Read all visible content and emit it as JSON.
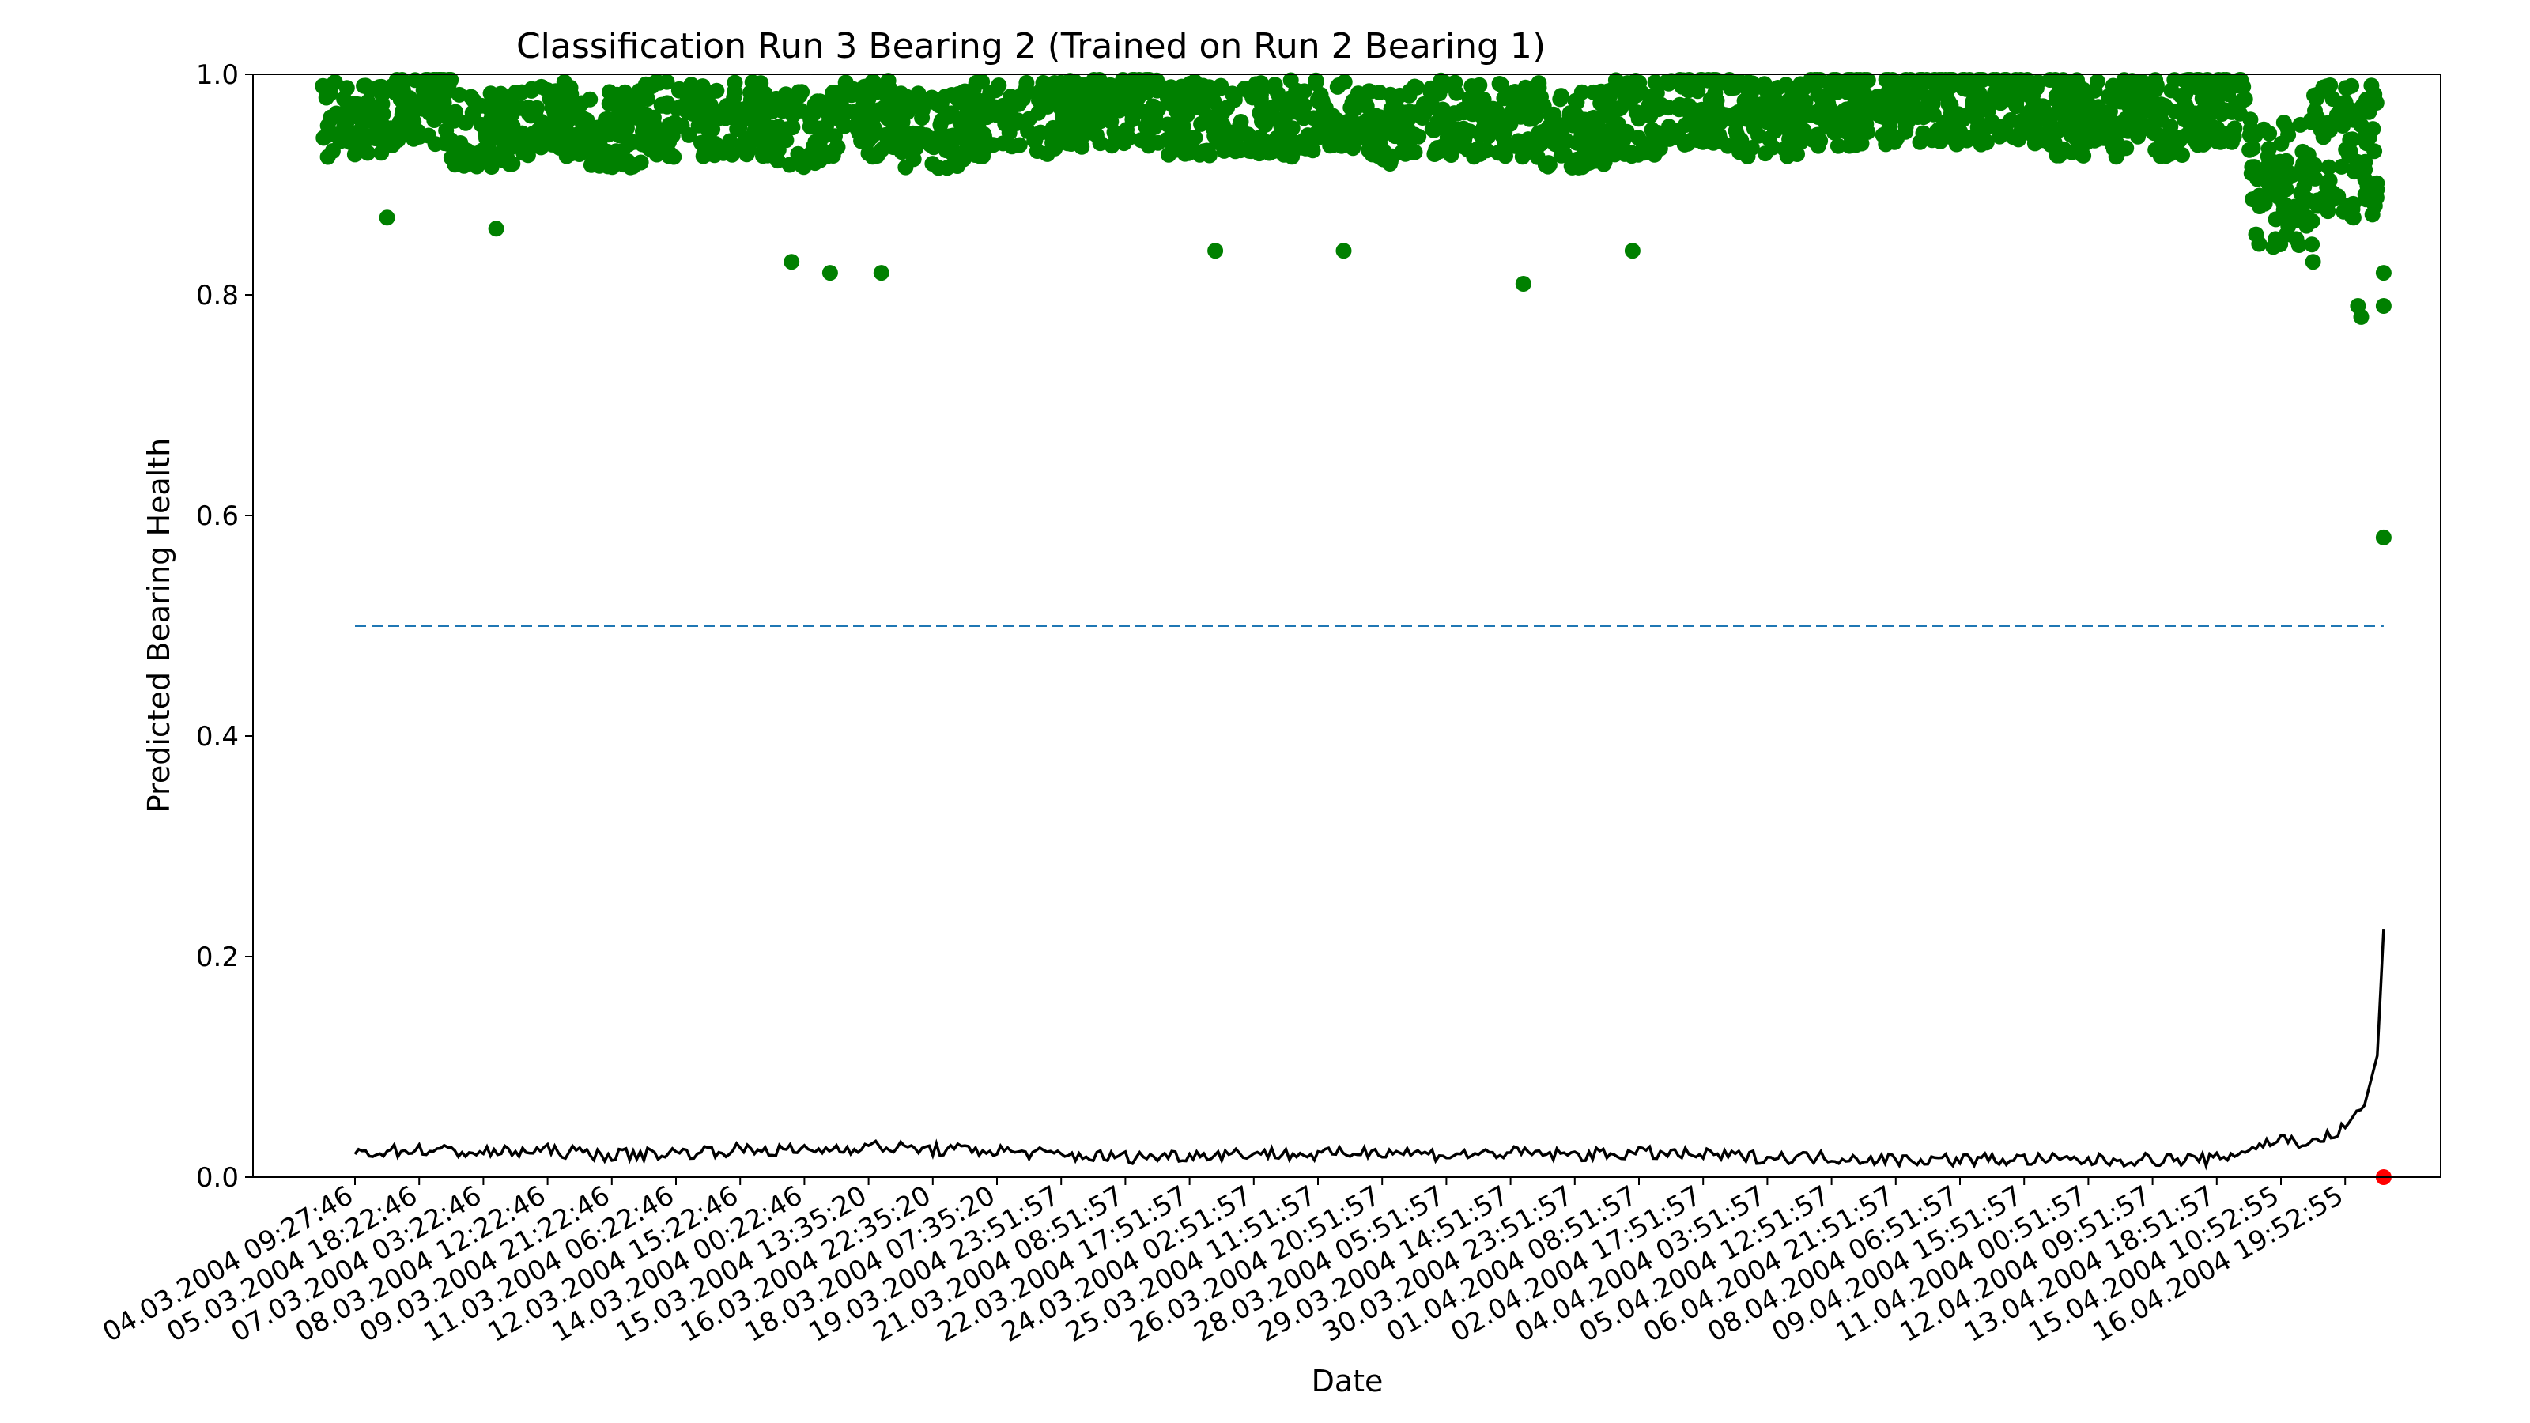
{
  "chart_data": {
    "type": "scatter",
    "title": "Classification Run 3 Bearing 2 (Trained on Run 2 Bearing 1)",
    "xlabel": "Date",
    "ylabel": "Predicted Bearing Health",
    "ylim": [
      0,
      1
    ],
    "yticks": [
      "0.0",
      "0.2",
      "0.4",
      "0.6",
      "0.8",
      "1.0"
    ],
    "xticks": [
      "04.03.2004 09:27:46",
      "05.03.2004 18:22:46",
      "07.03.2004 03:22:46",
      "08.03.2004 12:22:46",
      "09.03.2004 21:22:46",
      "11.03.2004 06:22:46",
      "12.03.2004 15:22:46",
      "14.03.2004 00:22:46",
      "15.03.2004 13:35:20",
      "16.03.2004 22:35:20",
      "18.03.2004 07:35:20",
      "19.03.2004 23:51:57",
      "21.03.2004 08:51:57",
      "22.03.2004 17:51:57",
      "24.03.2004 02:51:57",
      "25.03.2004 11:51:57",
      "26.03.2004 20:51:57",
      "28.03.2004 05:51:57",
      "29.03.2004 14:51:57",
      "30.03.2004 23:51:57",
      "01.04.2004 08:51:57",
      "02.04.2004 17:51:57",
      "04.04.2004 03:51:57",
      "05.04.2004 12:51:57",
      "06.04.2004 21:51:57",
      "08.04.2004 06:51:57",
      "09.04.2004 15:51:57",
      "11.04.2004 00:51:57",
      "12.04.2004 09:51:57",
      "13.04.2004 18:51:57",
      "15.04.2004 10:52:55",
      "16.04.2004 19:52:55"
    ],
    "grid": false,
    "threshold": {
      "y": 0.5,
      "style": "dashed",
      "color": "#1f77b4"
    },
    "series": [
      {
        "kind": "scatter",
        "color": "#008000",
        "x_index": [
          0,
          1,
          2,
          3,
          4,
          5,
          6,
          7,
          8,
          9,
          10,
          11,
          12,
          13,
          14,
          15,
          16,
          17,
          18,
          19,
          20,
          21,
          22,
          23,
          24,
          25,
          26,
          27,
          28,
          29,
          30,
          31
        ],
        "values": [
          0.96,
          0.97,
          0.95,
          0.96,
          0.95,
          0.96,
          0.96,
          0.95,
          0.96,
          0.95,
          0.96,
          0.96,
          0.97,
          0.96,
          0.96,
          0.96,
          0.95,
          0.96,
          0.96,
          0.95,
          0.96,
          0.97,
          0.96,
          0.97,
          0.97,
          0.97,
          0.97,
          0.96,
          0.96,
          0.97,
          0.9,
          0.93
        ],
        "notable_points": [
          {
            "x_index": 0.5,
            "y": 0.87
          },
          {
            "x_index": 2.2,
            "y": 0.86
          },
          {
            "x_index": 6.8,
            "y": 0.83
          },
          {
            "x_index": 7.4,
            "y": 0.82
          },
          {
            "x_index": 8.2,
            "y": 0.82
          },
          {
            "x_index": 13.4,
            "y": 0.84
          },
          {
            "x_index": 15.4,
            "y": 0.84
          },
          {
            "x_index": 18.2,
            "y": 0.81
          },
          {
            "x_index": 19.9,
            "y": 0.84
          },
          {
            "x_index": 30.5,
            "y": 0.83
          },
          {
            "x_index": 31.2,
            "y": 0.79
          },
          {
            "x_index": 31.25,
            "y": 0.78
          },
          {
            "x_index": 31.6,
            "y": 0.82
          },
          {
            "x_index": 31.6,
            "y": 0.79
          },
          {
            "x_index": 31.6,
            "y": 0.58
          }
        ]
      },
      {
        "kind": "line",
        "color": "#000000",
        "x_index": [
          0,
          1,
          2,
          3,
          4,
          5,
          6,
          7,
          8,
          9,
          10,
          11,
          12,
          13,
          14,
          15,
          16,
          17,
          18,
          19,
          20,
          21,
          22,
          23,
          24,
          25,
          26,
          27,
          28,
          29,
          30,
          30.5,
          31,
          31.3,
          31.5,
          31.6
        ],
        "values": [
          0.022,
          0.025,
          0.022,
          0.024,
          0.02,
          0.022,
          0.025,
          0.024,
          0.028,
          0.025,
          0.024,
          0.02,
          0.018,
          0.02,
          0.022,
          0.02,
          0.024,
          0.02,
          0.022,
          0.02,
          0.022,
          0.02,
          0.018,
          0.018,
          0.016,
          0.016,
          0.016,
          0.015,
          0.016,
          0.016,
          0.035,
          0.03,
          0.045,
          0.065,
          0.11,
          0.225
        ]
      },
      {
        "kind": "scatter",
        "color": "#ff0000",
        "x_index": [
          31.6
        ],
        "values": [
          0.0
        ]
      }
    ]
  }
}
